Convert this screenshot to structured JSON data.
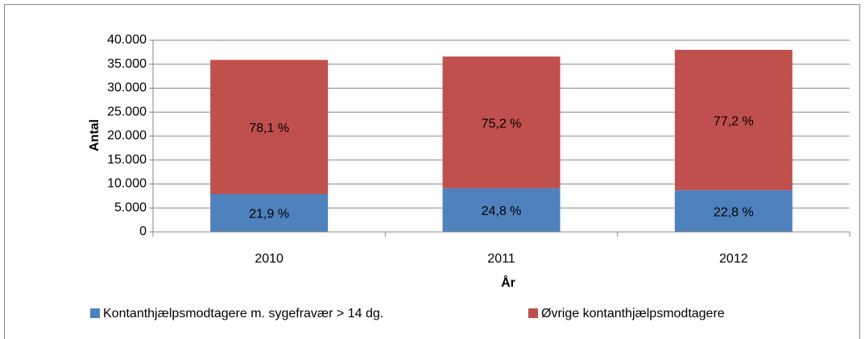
{
  "chart_data": {
    "type": "stacked_bar",
    "categories": [
      "2010",
      "2011",
      "2012"
    ],
    "series": [
      {
        "name": "Kontanthjælpsmodtagere m. sygefravær > 14 dg.",
        "color": "#4f81bd",
        "values": [
          7900,
          9100,
          8700
        ],
        "shares": [
          21.9,
          24.8,
          22.8
        ],
        "share_labels": [
          "21,9 %",
          "24,8 %",
          "22,8 %"
        ]
      },
      {
        "name": "Øvrige kontanthjælpsmodtagere",
        "color": "#c0504d",
        "values": [
          28000,
          27500,
          29300
        ],
        "shares": [
          78.1,
          75.2,
          77.2
        ],
        "share_labels": [
          "78,1 %",
          "75,2 %",
          "77,2 %"
        ]
      }
    ],
    "ylabel": "Antal",
    "xlabel": "År",
    "ylim": [
      0,
      40000
    ],
    "yticks": [
      0,
      {
        "value": 5000,
        "label": "5.000"
      },
      {
        "value": 10000,
        "label": "10.000"
      },
      {
        "value": 15000,
        "label": "15.000"
      },
      {
        "value": 20000,
        "label": "20.000"
      },
      {
        "value": 25000,
        "label": "25.000"
      },
      {
        "value": 30000,
        "label": "30.000"
      },
      {
        "value": 35000,
        "label": "35.000"
      },
      {
        "value": 40000,
        "label": "40.000"
      }
    ],
    "grid": true,
    "legend": "bottom"
  }
}
